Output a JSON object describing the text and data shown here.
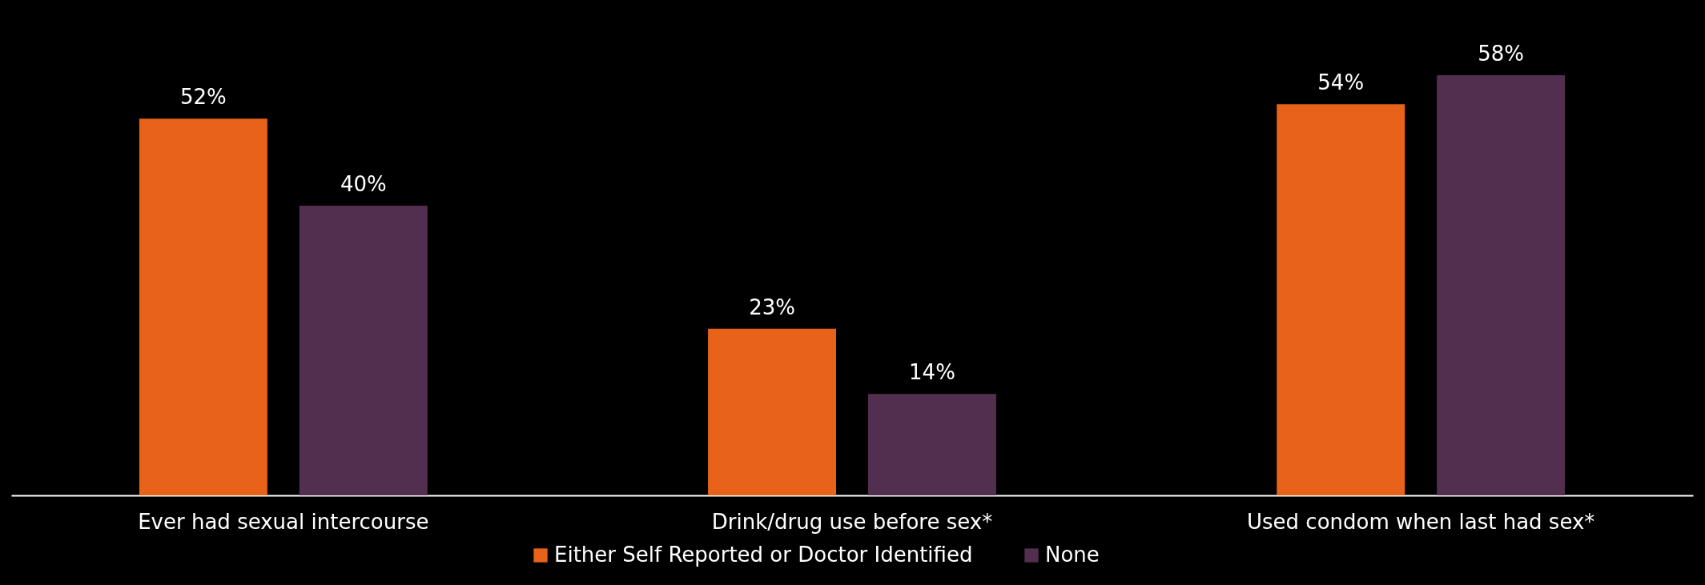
{
  "chart_data": {
    "type": "bar",
    "categories": [
      "Ever had sexual intercourse",
      "Drink/drug use before sex*",
      "Used condom when last had sex*"
    ],
    "series": [
      {
        "name": "Either Self Reported or Doctor Identified",
        "color": "#e8621a",
        "values": [
          52,
          23,
          54
        ],
        "value_labels": [
          "52%",
          "23%",
          "54%"
        ]
      },
      {
        "name": "None",
        "color": "#532f4f",
        "values": [
          40,
          14,
          58
        ],
        "value_labels": [
          "40%",
          "14%",
          "58%"
        ]
      }
    ],
    "legend": "bottom"
  }
}
